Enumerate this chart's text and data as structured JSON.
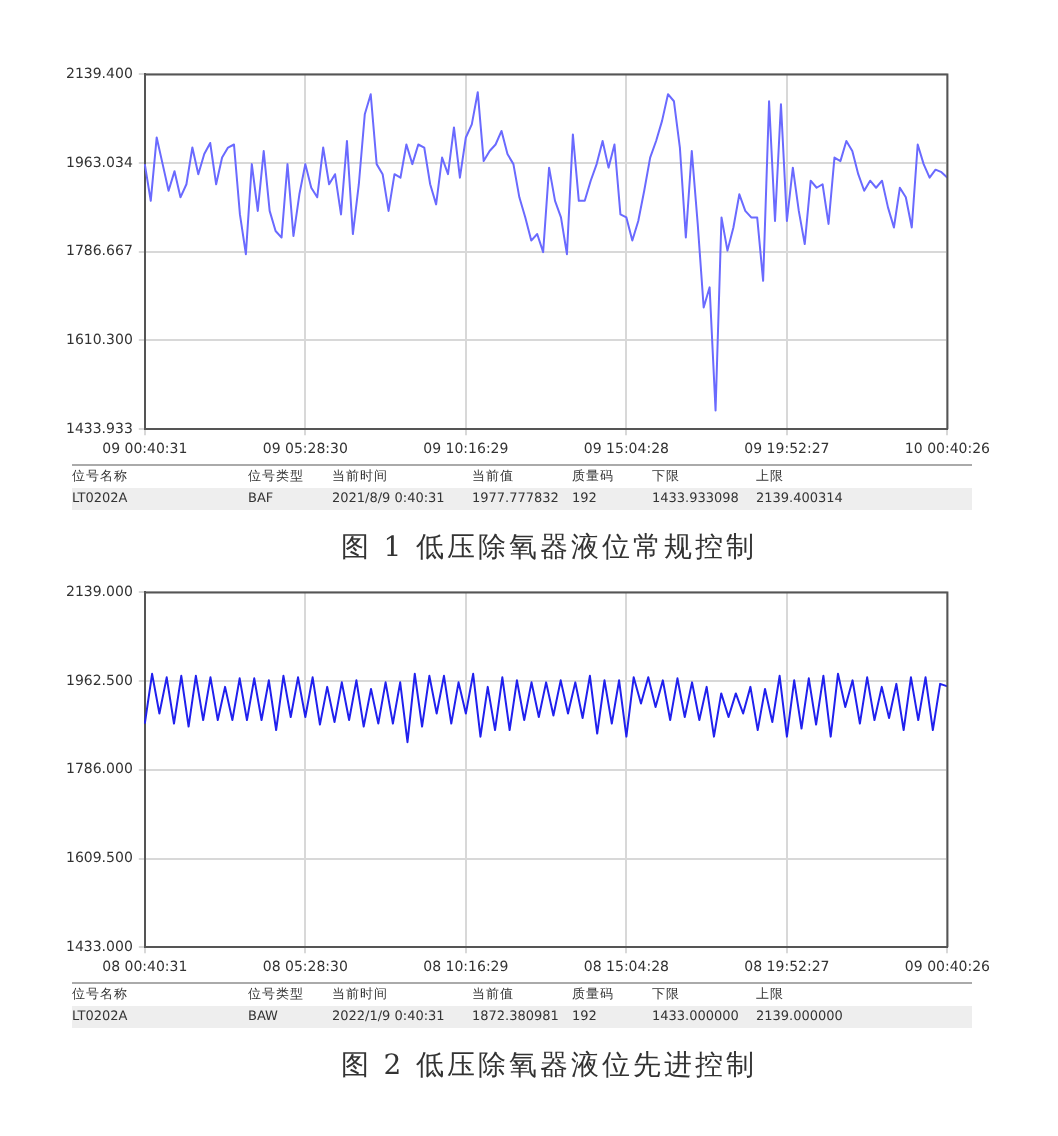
{
  "chart_data": [
    {
      "type": "line",
      "title": "图 1 低压除氧器液位常规控制",
      "categories": [
        "09 00:40:31",
        null,
        null,
        null,
        null,
        null,
        null,
        null,
        null,
        null,
        null,
        null,
        null,
        null,
        null,
        null,
        null,
        null,
        null,
        null,
        null,
        null,
        null,
        null,
        null,
        null,
        null,
        "09 05:28:30",
        null,
        null,
        null,
        null,
        null,
        null,
        null,
        null,
        null,
        null,
        null,
        null,
        null,
        null,
        null,
        null,
        null,
        null,
        null,
        null,
        null,
        null,
        null,
        null,
        null,
        null,
        "09 10:16:29",
        null,
        null,
        null,
        null,
        null,
        null,
        null,
        null,
        null,
        null,
        null,
        null,
        null,
        null,
        null,
        null,
        null,
        null,
        null,
        null,
        null,
        null,
        null,
        null,
        null,
        null,
        "09 15:04:28",
        null,
        null,
        null,
        null,
        null,
        null,
        null,
        null,
        null,
        null,
        null,
        null,
        null,
        null,
        null,
        null,
        null,
        null,
        null,
        null,
        null,
        null,
        null,
        null,
        null,
        null,
        "09 19:52:27",
        null,
        null,
        null,
        null,
        null,
        null,
        null,
        null,
        null,
        null,
        null,
        null,
        null,
        null,
        null,
        null,
        null,
        null,
        null,
        null,
        null,
        null,
        null,
        null,
        null,
        null,
        "10 00:40:26"
      ],
      "series": [
        {
          "color": "#6a6aff",
          "values": [
            1961,
            1888,
            2014,
            1961,
            1908,
            1947,
            1895,
            1921,
            1994,
            1941,
            1981,
            2003,
            1921,
            1974,
            1994,
            2000,
            1861,
            1782,
            1961,
            1868,
            1987,
            1868,
            1828,
            1815,
            1961,
            1818,
            1901,
            1961,
            1914,
            1895,
            1994,
            1921,
            1941,
            1861,
            2007,
            1822,
            1921,
            2060,
            2100,
            1961,
            1941,
            1868,
            1941,
            1934,
            2000,
            1961,
            2000,
            1994,
            1921,
            1881,
            1974,
            1941,
            2034,
            1934,
            2014,
            2040,
            2104,
            1967,
            1987,
            2000,
            2027,
            1981,
            1961,
            1895,
            1855,
            1809,
            1822,
            1786,
            1954,
            1888,
            1855,
            1782,
            2020,
            1888,
            1888,
            1928,
            1961,
            2007,
            1954,
            2000,
            1861,
            1855,
            1809,
            1848,
            1908,
            1974,
            2007,
            2047,
            2100,
            2086,
            1994,
            1815,
            1987,
            1842,
            1676,
            1716,
            1471,
            1855,
            1789,
            1835,
            1901,
            1868,
            1855,
            1855,
            1729,
            2086,
            1848,
            2080,
            1848,
            1954,
            1868,
            1802,
            1928,
            1914,
            1921,
            1842,
            1974,
            1967,
            2007,
            1987,
            1941,
            1908,
            1928,
            1914,
            1928,
            1875,
            1835,
            1914,
            1895,
            1835,
            2000,
            1961,
            1934,
            1950,
            1945,
            1934
          ]
        }
      ],
      "ylim": [
        1433.933,
        2139.4
      ],
      "yticks": [
        {
          "value": 1433.933,
          "label": "1433.933"
        },
        {
          "value": 1610.3,
          "label": "1610.300"
        },
        {
          "value": 1786.667,
          "label": "1786.667"
        },
        {
          "value": 1963.034,
          "label": "1963.034"
        },
        {
          "value": 2139.4,
          "label": "2139.400"
        }
      ],
      "grid": true,
      "legend": false,
      "marker": "none",
      "line_style": "solid",
      "annotations": [
        "位号名称",
        "位号类型",
        "当前时间",
        "当前值",
        "质量码",
        "下限",
        "上限",
        "LT0202A",
        "BAF",
        "2021/8/9 0:40:31",
        "1977.777832",
        "192",
        "1433.933098",
        "2139.400314"
      ]
    },
    {
      "type": "line",
      "title": "图 2 低压除氧器液位先进控制",
      "categories": [
        "08 00:40:31",
        null,
        null,
        null,
        null,
        null,
        null,
        null,
        null,
        null,
        null,
        null,
        null,
        null,
        null,
        null,
        null,
        null,
        null,
        null,
        null,
        null,
        "08 05:28:30",
        null,
        null,
        null,
        null,
        null,
        null,
        null,
        null,
        null,
        null,
        null,
        null,
        null,
        null,
        null,
        null,
        null,
        null,
        null,
        null,
        null,
        "08 10:16:29",
        null,
        null,
        null,
        null,
        null,
        null,
        null,
        null,
        null,
        null,
        null,
        null,
        null,
        null,
        null,
        null,
        null,
        null,
        null,
        null,
        null,
        "08 15:04:28",
        null,
        null,
        null,
        null,
        null,
        null,
        null,
        null,
        null,
        null,
        null,
        null,
        null,
        null,
        null,
        null,
        null,
        null,
        null,
        null,
        null,
        "08 19:52:27",
        null,
        null,
        null,
        null,
        null,
        null,
        null,
        null,
        null,
        null,
        null,
        null,
        null,
        null,
        null,
        null,
        null,
        null,
        null,
        null,
        null,
        "09 00:40:26"
      ],
      "series": [
        {
          "color": "#2020ee",
          "values": [
            1878,
            1977,
            1898,
            1970,
            1878,
            1973,
            1872,
            1973,
            1885,
            1970,
            1885,
            1951,
            1885,
            1968,
            1885,
            1968,
            1885,
            1964,
            1865,
            1973,
            1891,
            1970,
            1891,
            1970,
            1876,
            1951,
            1881,
            1960,
            1885,
            1964,
            1872,
            1947,
            1878,
            1960,
            1878,
            1960,
            1841,
            1977,
            1872,
            1973,
            1898,
            1973,
            1878,
            1960,
            1898,
            1977,
            1852,
            1951,
            1865,
            1970,
            1865,
            1964,
            1885,
            1960,
            1891,
            1960,
            1894,
            1964,
            1898,
            1960,
            1889,
            1973,
            1858,
            1964,
            1878,
            1964,
            1852,
            1970,
            1918,
            1970,
            1911,
            1964,
            1885,
            1968,
            1891,
            1960,
            1885,
            1951,
            1852,
            1938,
            1891,
            1938,
            1898,
            1951,
            1865,
            1947,
            1881,
            1973,
            1852,
            1964,
            1868,
            1968,
            1876,
            1973,
            1852,
            1977,
            1911,
            1964,
            1878,
            1970,
            1885,
            1951,
            1889,
            1957,
            1865,
            1970,
            1885,
            1970,
            1865,
            1957,
            1952
          ]
        }
      ],
      "ylim": [
        1433,
        2139
      ],
      "yticks": [
        {
          "value": 1433,
          "label": "1433.000"
        },
        {
          "value": 1609.5,
          "label": "1609.500"
        },
        {
          "value": 1786,
          "label": "1786.000"
        },
        {
          "value": 1962.5,
          "label": "1962.500"
        },
        {
          "value": 2139,
          "label": "2139.000"
        }
      ],
      "grid": true,
      "legend": false,
      "marker": "none",
      "line_style": "solid",
      "annotations": [
        "位号名称",
        "位号类型",
        "当前时间",
        "当前值",
        "质量码",
        "下限",
        "上限",
        "LT0202A",
        "BAW",
        "2022/1/9 0:40:31",
        "1872.380981",
        "192",
        "1433.000000",
        "2139.000000"
      ]
    }
  ]
}
